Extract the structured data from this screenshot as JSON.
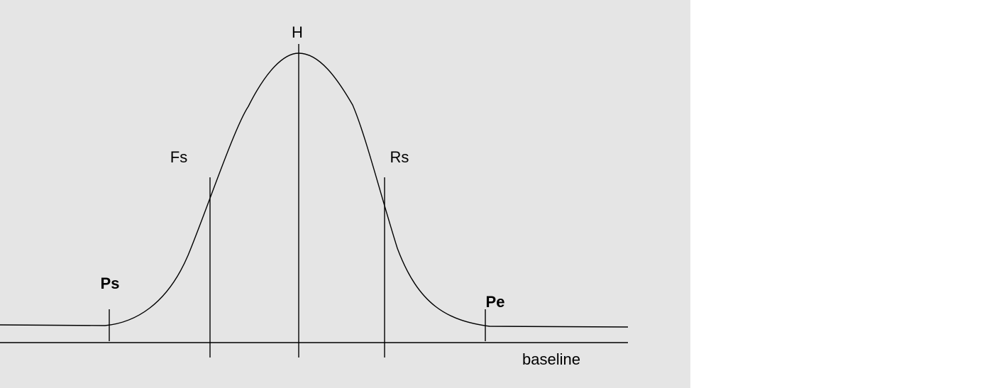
{
  "labels": {
    "peak": "H",
    "front_start": "Fs",
    "rear_start": "Rs",
    "peak_start": "Ps",
    "peak_end": "Pe",
    "baseline": "baseline"
  }
}
